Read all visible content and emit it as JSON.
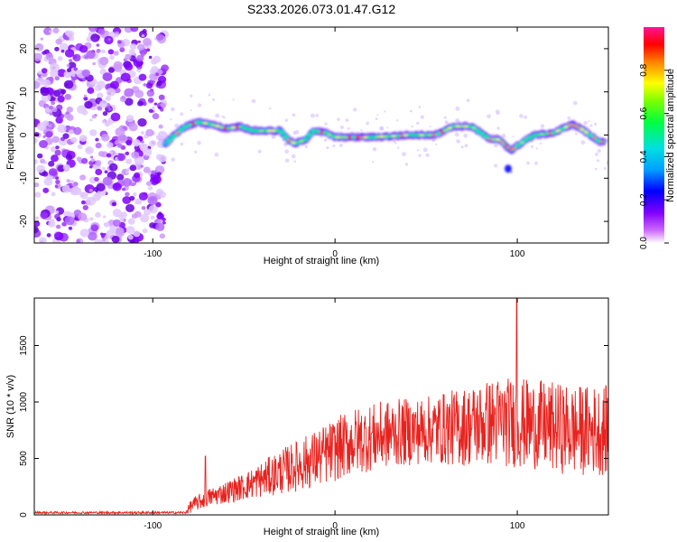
{
  "title": "S233.2026.073.01.47.G12",
  "colors": {
    "snr_line": "#e8231f",
    "frame": "#000000",
    "colormap": [
      "#ffffff",
      "#cc66ff",
      "#8000ff",
      "#0000ff",
      "#00a0ff",
      "#00e0e0",
      "#00ff40",
      "#80ff00",
      "#ffff00",
      "#ff8000",
      "#ff0000",
      "#ff1493"
    ]
  },
  "chart_data": [
    {
      "type": "heatmap",
      "name": "spectrogram",
      "title": "S233.2026.073.01.47.G12",
      "xlabel": "Height of straight line (km)",
      "ylabel": "Frequency (Hz)",
      "xlim": [
        -165,
        150
      ],
      "ylim": [
        -25,
        25
      ],
      "xticks": [
        -100,
        0,
        100
      ],
      "yticks": [
        -20,
        -10,
        0,
        10,
        20
      ],
      "xtick_labels": [
        "-100",
        "0",
        "100"
      ],
      "ytick_labels": [
        "-20",
        "-10",
        "0",
        "10",
        "20"
      ],
      "noise_region_x": [
        -165,
        -93
      ],
      "signal_track": {
        "x": [
          -93,
          -88,
          -82,
          -75,
          -68,
          -60,
          -52,
          -45,
          -38,
          -30,
          -26,
          -22,
          -16,
          -12,
          -5,
          0,
          10,
          20,
          30,
          40,
          50,
          55,
          60,
          65,
          70,
          75,
          80,
          85,
          90,
          95,
          97,
          100,
          105,
          110,
          120,
          125,
          130,
          135,
          140,
          145,
          148
        ],
        "freq": [
          -2,
          0,
          2,
          3,
          2.5,
          1.5,
          2,
          1,
          1,
          1,
          -1,
          -2,
          -1,
          1,
          0.5,
          -0.5,
          -0.5,
          -0.5,
          -0.3,
          0,
          0,
          0,
          1,
          2,
          2,
          2,
          0.5,
          -1,
          -1,
          -3,
          -3.5,
          -2.5,
          -1,
          0,
          0.5,
          1.5,
          2.5,
          1.5,
          0,
          -1.5,
          -1.5
        ]
      },
      "colorbar": {
        "label": "Normalized spectral amplitude",
        "range": [
          0,
          1
        ],
        "ticks": [
          0.0,
          0.2,
          0.4,
          0.6,
          0.8
        ],
        "tick_labels": [
          "0.0",
          "0.2",
          "0.4",
          "0.6",
          "0.8"
        ]
      }
    },
    {
      "type": "line",
      "name": "snr",
      "xlabel": "Height of straight line (km)",
      "ylabel": "SNR (10 * v/v)",
      "xlim": [
        -165,
        150
      ],
      "ylim": [
        0,
        1920
      ],
      "xticks": [
        -100,
        0,
        100
      ],
      "yticks": [
        0,
        500,
        1000,
        1500
      ],
      "xtick_labels": [
        "-100",
        "0",
        "100"
      ],
      "ytick_labels": [
        "0",
        "500",
        "1000",
        "1500"
      ],
      "envelope": {
        "x": [
          -165,
          -100,
          -90,
          -82,
          -79,
          -70,
          -50,
          -30,
          -10,
          10,
          30,
          50,
          70,
          90,
          110,
          130,
          150
        ],
        "mean": [
          20,
          20,
          20,
          20,
          80,
          150,
          250,
          380,
          500,
          650,
          720,
          750,
          780,
          830,
          800,
          750,
          750
        ],
        "amp": [
          10,
          10,
          10,
          10,
          60,
          80,
          120,
          200,
          260,
          300,
          300,
          300,
          350,
          400,
          400,
          400,
          400
        ]
      },
      "peaks": [
        {
          "x": -71,
          "y": 520
        },
        {
          "x": 99.8,
          "y": 1920
        }
      ]
    }
  ]
}
